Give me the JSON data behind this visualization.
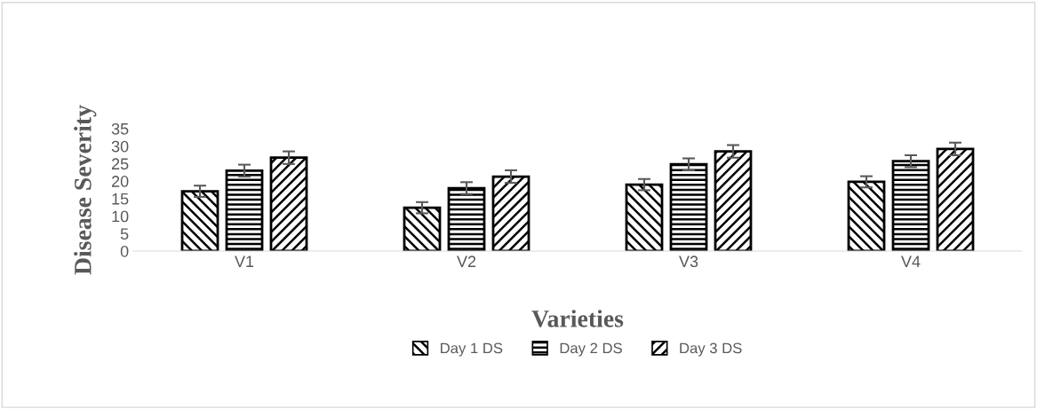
{
  "chart_data": {
    "type": "bar",
    "xlabel": "Varieties",
    "ylabel": "Disease Severity",
    "categories": [
      "V1",
      "V2",
      "V3",
      "V4"
    ],
    "series": [
      {
        "name": "Day 1 DS",
        "color": "#000000",
        "values": [
          17.1,
          12.4,
          19.0,
          19.8
        ],
        "errors": [
          1.6,
          1.6,
          1.6,
          1.6
        ]
      },
      {
        "name": "Day 2 DS",
        "color": "#000000",
        "values": [
          23.0,
          18.0,
          24.8,
          25.7
        ],
        "errors": [
          1.7,
          1.7,
          1.7,
          1.7
        ]
      },
      {
        "name": "Day 3 DS",
        "color": "#000000",
        "values": [
          26.7,
          21.3,
          28.5,
          29.2
        ],
        "errors": [
          1.8,
          1.8,
          1.8,
          1.8
        ]
      }
    ],
    "ylim": [
      0,
      35
    ],
    "yticks": [
      0,
      5,
      10,
      15,
      20,
      25,
      30,
      35
    ],
    "grid": false,
    "legend": "bottom"
  }
}
